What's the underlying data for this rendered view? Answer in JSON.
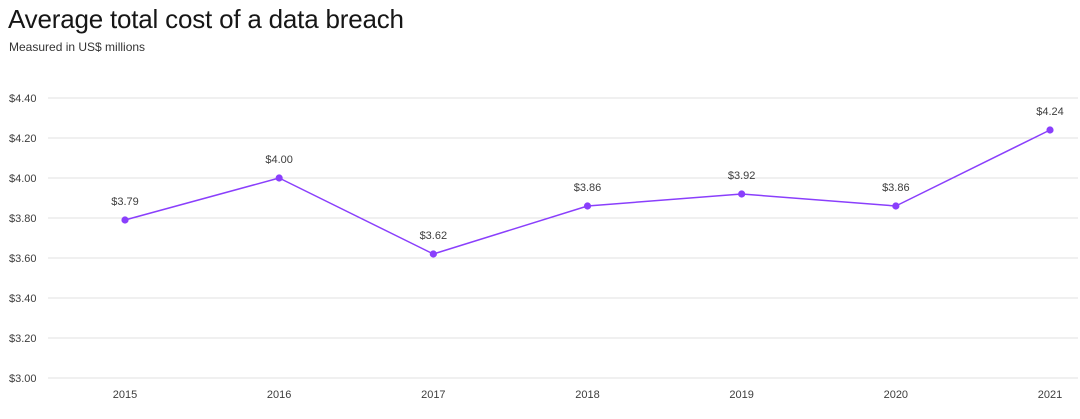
{
  "chart_data": {
    "type": "line",
    "title": "Average total cost of a data breach",
    "subtitle": "Measured in US$ millions",
    "xlabel": "",
    "ylabel": "",
    "x": [
      "2015",
      "2016",
      "2017",
      "2018",
      "2019",
      "2020",
      "2021"
    ],
    "series": [
      {
        "values": [
          3.79,
          4.0,
          3.62,
          3.86,
          3.92,
          3.86,
          4.24
        ],
        "data_labels": [
          "$3.79",
          "$4.00",
          "$3.62",
          "$3.86",
          "$3.92",
          "$3.86",
          "$4.24"
        ],
        "color": "#8a3ffc"
      }
    ],
    "ylim": [
      3.0,
      4.4
    ],
    "y_ticks": [
      3.0,
      3.2,
      3.4,
      3.6,
      3.8,
      4.0,
      4.2,
      4.4
    ],
    "y_tick_labels": [
      "$3.00",
      "$3.20",
      "$3.40",
      "$3.60",
      "$3.80",
      "$4.00",
      "$4.20",
      "$4.40"
    ],
    "grid": true,
    "legend": "none",
    "colors": {
      "line": "#8a3ffc",
      "grid": "#e0e0e0",
      "text": "#161616"
    }
  }
}
